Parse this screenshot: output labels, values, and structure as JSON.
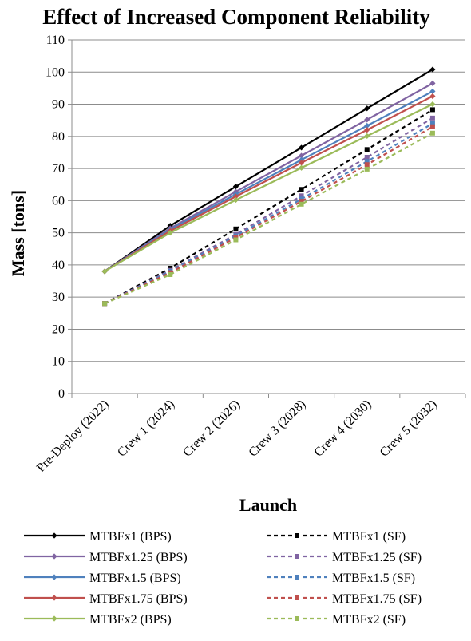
{
  "chart_data": {
    "type": "line",
    "title": "Effect of Increased Component Reliability",
    "xlabel": "Launch",
    "ylabel": "Mass [tons]",
    "ylim": [
      0,
      110
    ],
    "ytick_step": 10,
    "grid": "horizontal",
    "legend_position": "bottom",
    "categories": [
      "Pre-Deploy (2022)",
      "Crew 1 (2024)",
      "Crew 2 (2026)",
      "Crew 3 (2028)",
      "Crew 4 (2030)",
      "Crew 5 (2032)"
    ],
    "series": [
      {
        "name": "MTBFx1 (BPS)",
        "color": "#000000",
        "dashed": false,
        "marker": "diamond",
        "values": [
          38,
          52.2,
          64.4,
          76.5,
          88.7,
          100.8
        ]
      },
      {
        "name": "MTBFx1 (SF)",
        "color": "#000000",
        "dashed": true,
        "marker": "square",
        "values": [
          28,
          39,
          51.2,
          63.5,
          75.9,
          88.3
        ]
      },
      {
        "name": "MTBFx1.25 (BPS)",
        "color": "#8064A2",
        "dashed": false,
        "marker": "diamond",
        "values": [
          38,
          51.4,
          62.8,
          74,
          85.2,
          96.5
        ]
      },
      {
        "name": "MTBFx1.25 (SF)",
        "color": "#8064A2",
        "dashed": true,
        "marker": "square",
        "values": [
          28,
          38.3,
          49.5,
          61.5,
          73.5,
          85.7
        ]
      },
      {
        "name": "MTBFx1.5 (BPS)",
        "color": "#4F81BD",
        "dashed": false,
        "marker": "diamond",
        "values": [
          38,
          51,
          62,
          72.7,
          83.3,
          94
        ]
      },
      {
        "name": "MTBFx1.5 (SF)",
        "color": "#4F81BD",
        "dashed": true,
        "marker": "square",
        "values": [
          28,
          38,
          49,
          60.5,
          72.2,
          84
        ]
      },
      {
        "name": "MTBFx1.75 (BPS)",
        "color": "#C0504D",
        "dashed": false,
        "marker": "diamond",
        "values": [
          38,
          50.6,
          61.3,
          71.8,
          82,
          92.5
        ]
      },
      {
        "name": "MTBFx1.75 (SF)",
        "color": "#C0504D",
        "dashed": true,
        "marker": "square",
        "values": [
          28,
          37.6,
          48.5,
          59.8,
          71.2,
          83
        ]
      },
      {
        "name": "MTBFx2 (BPS)",
        "color": "#9BBB59",
        "dashed": false,
        "marker": "diamond",
        "values": [
          38,
          50,
          60.2,
          70.2,
          80.1,
          90
        ]
      },
      {
        "name": "MTBFx2 (SF)",
        "color": "#9BBB59",
        "dashed": true,
        "marker": "square",
        "values": [
          28,
          37,
          47.8,
          58.9,
          69.8,
          81
        ]
      }
    ]
  }
}
